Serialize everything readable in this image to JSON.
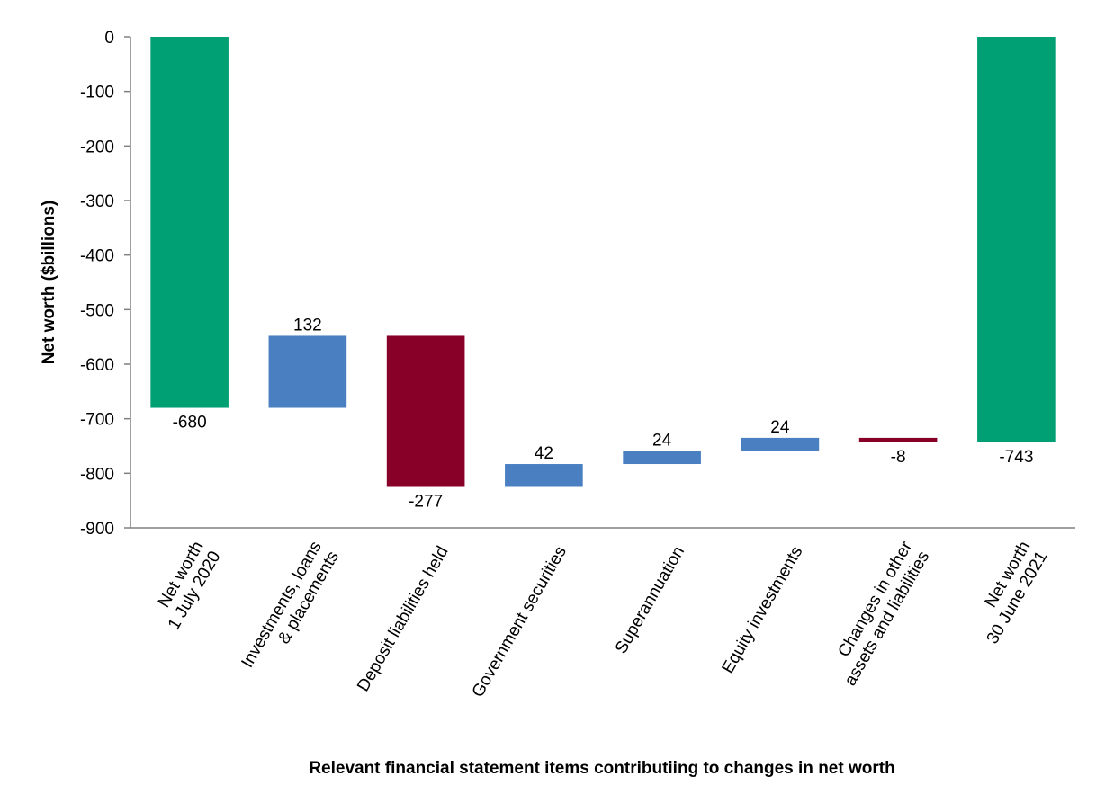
{
  "chart_data": {
    "type": "bar",
    "subtype": "waterfall",
    "title": "",
    "xlabel": "Relevant financial statement items contributiing to changes in net worth",
    "ylabel": "Net worth ($billions)",
    "ylim": [
      -900,
      0
    ],
    "yticks": [
      "0",
      "-100",
      "-200",
      "-300",
      "-400",
      "-500",
      "-600",
      "-700",
      "-800",
      "-900"
    ],
    "ytick_values": [
      0,
      -100,
      -200,
      -300,
      -400,
      -500,
      -600,
      -700,
      -800,
      -900
    ],
    "grid": false,
    "legend": "none",
    "colors": {
      "total": "#00A074",
      "increase": "#4A80C2",
      "decrease": "#880028",
      "axis": "#808080"
    },
    "categories": [
      [
        "Net worth",
        "1 July 2020"
      ],
      [
        "Investments, loans",
        "& placements"
      ],
      [
        "Deposit liabilities held"
      ],
      [
        "Government  securities"
      ],
      [
        "Superannuation"
      ],
      [
        "Equity investments"
      ],
      [
        "Changes in other",
        "assets and liabilities"
      ],
      [
        "Net worth",
        "30 June 2021"
      ]
    ],
    "bars": [
      {
        "kind": "total",
        "start": 0,
        "end": -680,
        "label": "-680",
        "label_pos": "below"
      },
      {
        "kind": "increase",
        "start": -680,
        "end": -548,
        "label": "132",
        "label_pos": "above"
      },
      {
        "kind": "decrease",
        "start": -548,
        "end": -825,
        "label": "-277",
        "label_pos": "below"
      },
      {
        "kind": "increase",
        "start": -825,
        "end": -783,
        "label": "42",
        "label_pos": "above"
      },
      {
        "kind": "increase",
        "start": -783,
        "end": -759,
        "label": "24",
        "label_pos": "above"
      },
      {
        "kind": "increase",
        "start": -759,
        "end": -735,
        "label": "24",
        "label_pos": "above"
      },
      {
        "kind": "decrease",
        "start": -735,
        "end": -743,
        "label": "-8",
        "label_pos": "below"
      },
      {
        "kind": "total",
        "start": 0,
        "end": -743,
        "label": "-743",
        "label_pos": "below"
      }
    ]
  }
}
